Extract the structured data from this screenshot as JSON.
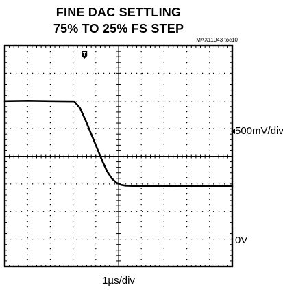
{
  "title": {
    "line1": "FINE DAC SETTLING",
    "line2": "75% TO 25% FS STEP"
  },
  "figure_id": "MAX11043 toc10",
  "chart_data": {
    "type": "line",
    "title": "FINE DAC SETTLING 75% TO 25% FS STEP",
    "xlabel": "1µs/div",
    "ylabel": "500mV/div",
    "x_units": "div",
    "y_units": "div",
    "xlim": [
      0,
      10
    ],
    "ylim": [
      0,
      8
    ],
    "x_divisions": 10,
    "y_divisions": 8,
    "grid": true,
    "ground_reference": {
      "label": "0V",
      "y": 1
    },
    "trigger_marker": {
      "label": "T",
      "x": 3.5
    },
    "series": [
      {
        "values_desc": "voltage (div above graticule bottom) vs time (div)",
        "x": [
          0,
          1,
          2,
          3.05,
          3.3,
          3.55,
          3.8,
          4.05,
          4.3,
          4.5,
          4.7,
          4.9,
          5.1,
          5.3,
          5.6,
          6,
          7,
          8,
          9,
          10
        ],
        "y": [
          6.0,
          6.01,
          6.0,
          5.99,
          5.75,
          5.3,
          4.8,
          4.3,
          3.8,
          3.45,
          3.2,
          3.05,
          2.97,
          2.94,
          2.93,
          2.92,
          2.92,
          2.93,
          2.92,
          2.92
        ]
      }
    ]
  },
  "labels": {
    "scale": "500mV/div",
    "ref": "0V",
    "x_scale": "1µs/div"
  }
}
